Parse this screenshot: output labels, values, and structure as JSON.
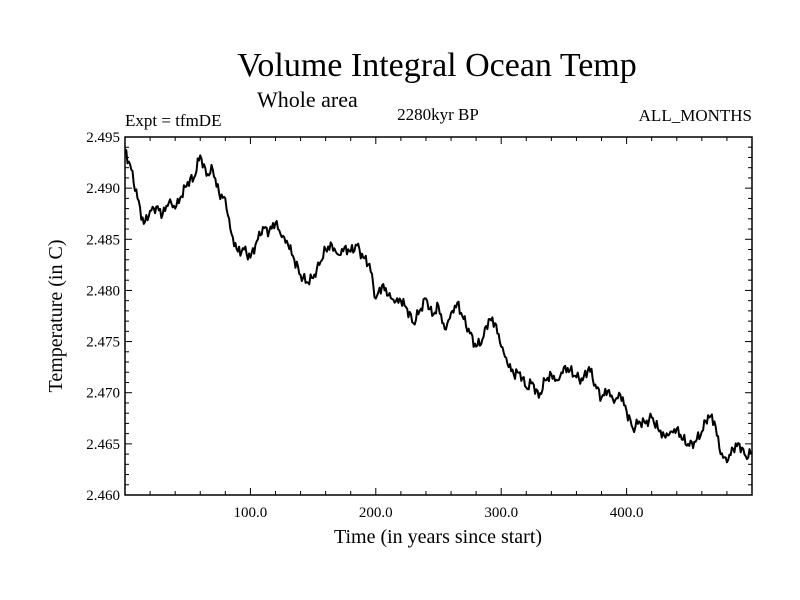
{
  "chart_data": {
    "type": "line",
    "title": "Volume Integral Ocean Temp",
    "subtitle": "Whole area",
    "left_label": "Expt = tfmDE",
    "center_label": "2280kyr BP",
    "right_label": "ALL_MONTHS",
    "xlabel": "Time (in years since start)",
    "ylabel": "Temperature (in C)",
    "xlim": [
      0,
      500
    ],
    "ylim": [
      2.46,
      2.495
    ],
    "xticks": [
      {
        "value": 100,
        "label": "100.0"
      },
      {
        "value": 200,
        "label": "200.0"
      },
      {
        "value": 300,
        "label": "300.0"
      },
      {
        "value": 400,
        "label": "400.0"
      }
    ],
    "yticks": [
      {
        "value": 2.46,
        "label": "2.460"
      },
      {
        "value": 2.465,
        "label": "2.465"
      },
      {
        "value": 2.47,
        "label": "2.470"
      },
      {
        "value": 2.475,
        "label": "2.475"
      },
      {
        "value": 2.48,
        "label": "2.480"
      },
      {
        "value": 2.485,
        "label": "2.485"
      },
      {
        "value": 2.49,
        "label": "2.490"
      },
      {
        "value": 2.495,
        "label": "2.495"
      }
    ],
    "series": [
      {
        "name": "Volume integral ocean temperature",
        "x": [
          0,
          5,
          10,
          15,
          20,
          25,
          30,
          35,
          40,
          45,
          50,
          55,
          60,
          65,
          70,
          75,
          80,
          85,
          90,
          95,
          100,
          105,
          110,
          115,
          120,
          125,
          130,
          135,
          140,
          145,
          150,
          155,
          160,
          165,
          170,
          175,
          180,
          185,
          190,
          195,
          200,
          205,
          210,
          215,
          220,
          225,
          230,
          235,
          240,
          245,
          250,
          255,
          260,
          265,
          270,
          275,
          280,
          285,
          290,
          295,
          300,
          305,
          310,
          315,
          320,
          325,
          330,
          335,
          340,
          345,
          350,
          355,
          360,
          365,
          370,
          375,
          380,
          385,
          390,
          395,
          400,
          405,
          410,
          415,
          420,
          425,
          430,
          435,
          440,
          445,
          450,
          455,
          460,
          465,
          470,
          475,
          480,
          485,
          490,
          495,
          500
        ],
        "y": [
          2.4938,
          2.4918,
          2.489,
          2.4865,
          2.4878,
          2.4882,
          2.4874,
          2.4886,
          2.488,
          2.4892,
          2.4906,
          2.491,
          2.4932,
          2.4912,
          2.4918,
          2.4895,
          2.489,
          2.4855,
          2.4838,
          2.484,
          2.4832,
          2.4848,
          2.4862,
          2.4858,
          2.4866,
          2.4852,
          2.4845,
          2.483,
          2.4815,
          2.4808,
          2.4812,
          2.4825,
          2.484,
          2.4845,
          2.4835,
          2.4842,
          2.4838,
          2.4844,
          2.4832,
          2.4826,
          2.4792,
          2.4805,
          2.4795,
          2.4788,
          2.479,
          2.4782,
          2.4768,
          2.478,
          2.4792,
          2.4775,
          2.4785,
          2.4762,
          2.4778,
          2.4788,
          2.4772,
          2.4758,
          2.4745,
          2.4752,
          2.4772,
          2.4768,
          2.4745,
          2.4728,
          2.4718,
          2.472,
          2.4705,
          2.471,
          2.4695,
          2.4712,
          2.4718,
          2.4712,
          2.4725,
          2.4722,
          2.4715,
          2.4712,
          2.4725,
          2.4708,
          2.4695,
          2.4702,
          2.469,
          2.4698,
          2.4682,
          2.4665,
          2.4672,
          2.467,
          2.4676,
          2.4665,
          2.4658,
          2.4662,
          2.4665,
          2.4654,
          2.4648,
          2.4652,
          2.4662,
          2.4678,
          2.4672,
          2.464,
          2.4632,
          2.4645,
          2.465,
          2.4638,
          2.4642
        ]
      }
    ]
  }
}
